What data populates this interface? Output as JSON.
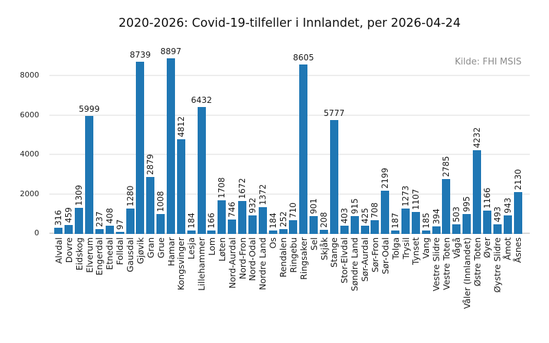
{
  "chart_data": {
    "type": "bar",
    "title": "2020-2026: Covid-19-tilfeller i Innlandet, per 2026-04-24",
    "source_note": "Kilde: FHI MSIS",
    "xlabel": "",
    "ylabel": "",
    "categories": [
      "Alvdal",
      "Dovre",
      "Eidskog",
      "Elverum",
      "Engerdal",
      "Etnedal",
      "Folldal",
      "Gausdal",
      "Gjøvik",
      "Gran",
      "Grue",
      "Hamar",
      "Kongsvinger",
      "Lesja",
      "Lillehammer",
      "Lom",
      "Løten",
      "Nord-Aurdal",
      "Nord-Fron",
      "Nord-Odal",
      "Nordre Land",
      "Os",
      "Rendalen",
      "Ringebu",
      "Ringsaker",
      "Sel",
      "Skjåk",
      "Stange",
      "Stor-Elvdal",
      "Søndre Land",
      "Sør-Aurdal",
      "Sør-Fron",
      "Sør-Odal",
      "Tolga",
      "Trysil",
      "Tynset",
      "Vang",
      "Vestre Slidre",
      "Vestre Toten",
      "Vågå",
      "Våler (Innlandet)",
      "Østre Toten",
      "Øyer",
      "Øystre Slidre",
      "Åmot",
      "Åsnes"
    ],
    "values": [
      316,
      459,
      1309,
      5999,
      237,
      408,
      97,
      1280,
      8739,
      2879,
      1008,
      8897,
      4812,
      184,
      6432,
      166,
      1708,
      746,
      1672,
      932,
      1372,
      184,
      252,
      710,
      8605,
      901,
      208,
      5777,
      403,
      915,
      425,
      708,
      2199,
      187,
      1273,
      1107,
      185,
      394,
      2785,
      503,
      995,
      4232,
      1166,
      493,
      943,
      2130
    ],
    "yticks": [
      0,
      2000,
      4000,
      6000,
      8000
    ],
    "ylim": [
      0,
      9320
    ],
    "grid": true,
    "legend": false,
    "bar_color": "#1f77b4",
    "value_labels": true,
    "value_label_horizontal_threshold": 5000,
    "x_tick_rotation": 90
  }
}
